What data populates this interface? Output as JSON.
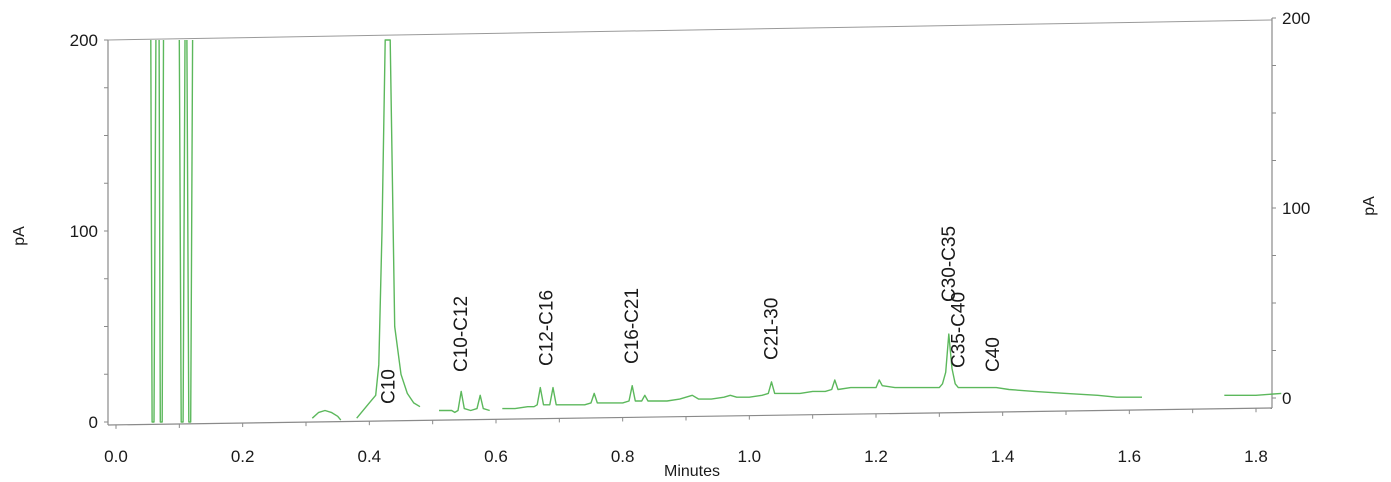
{
  "chart_data": {
    "type": "line",
    "title": "",
    "xlabel": "Minutes",
    "ylabel_left": "pA",
    "ylabel_right": "pA",
    "xlim": [
      0.0,
      1.84
    ],
    "ylim_left": [
      0,
      200
    ],
    "ylim_right": [
      0,
      200
    ],
    "x_ticks": [
      "0.0",
      "0.2",
      "0.4",
      "0.6",
      "0.8",
      "1.0",
      "1.2",
      "1.4",
      "1.6",
      "1.8"
    ],
    "y_ticks_left": [
      "0",
      "100",
      "200"
    ],
    "y_ticks_right": [
      "0",
      "100",
      "200"
    ],
    "grid": false,
    "line_color": "#5cb85c",
    "peak_labels": [
      {
        "text": "C10",
        "x": 0.43
      },
      {
        "text": "C10-C12",
        "x": 0.545
      },
      {
        "text": "C12-C16",
        "x": 0.68
      },
      {
        "text": "C16-C21",
        "x": 0.815
      },
      {
        "text": "C21-30",
        "x": 1.035
      },
      {
        "text": "C30-C35",
        "x": 1.315
      },
      {
        "text": "C35-C40",
        "x": 1.33
      },
      {
        "text": "C40",
        "x": 1.385
      }
    ],
    "series": [
      {
        "segments": [
          [
            [
              0.055,
              200
            ],
            [
              0.057,
              0
            ],
            [
              0.06,
              0
            ],
            [
              0.063,
              200
            ]
          ],
          [
            [
              0.068,
              200
            ],
            [
              0.07,
              0
            ],
            [
              0.073,
              0
            ],
            [
              0.075,
              200
            ]
          ],
          [
            [
              0.1,
              200
            ],
            [
              0.103,
              0
            ],
            [
              0.106,
              0
            ],
            [
              0.109,
              200
            ]
          ],
          [
            [
              0.112,
              200
            ],
            [
              0.115,
              0
            ],
            [
              0.118,
              0
            ],
            [
              0.121,
              200
            ]
          ],
          [
            [
              0.31,
              2
            ],
            [
              0.32,
              5
            ],
            [
              0.33,
              6
            ],
            [
              0.34,
              5
            ],
            [
              0.35,
              3
            ],
            [
              0.355,
              1
            ]
          ],
          [
            [
              0.38,
              2
            ],
            [
              0.4,
              10
            ],
            [
              0.41,
              14
            ],
            [
              0.415,
              30
            ],
            [
              0.42,
              100
            ],
            [
              0.425,
              200
            ],
            [
              0.433,
              200
            ],
            [
              0.44,
              50
            ],
            [
              0.45,
              25
            ],
            [
              0.46,
              15
            ],
            [
              0.47,
              10
            ],
            [
              0.48,
              8
            ]
          ],
          [
            [
              0.51,
              6
            ],
            [
              0.52,
              6
            ],
            [
              0.53,
              6
            ],
            [
              0.535,
              5
            ],
            [
              0.54,
              6
            ],
            [
              0.545,
              16
            ],
            [
              0.55,
              7
            ],
            [
              0.56,
              6
            ],
            [
              0.57,
              7
            ],
            [
              0.575,
              14
            ],
            [
              0.58,
              7
            ],
            [
              0.59,
              6
            ]
          ],
          [
            [
              0.61,
              7
            ],
            [
              0.63,
              7
            ],
            [
              0.65,
              8
            ],
            [
              0.66,
              8
            ],
            [
              0.665,
              9
            ],
            [
              0.67,
              18
            ],
            [
              0.675,
              9
            ],
            [
              0.685,
              9
            ],
            [
              0.69,
              18
            ],
            [
              0.695,
              9
            ],
            [
              0.72,
              9
            ],
            [
              0.74,
              9
            ],
            [
              0.75,
              10
            ],
            [
              0.755,
              15
            ],
            [
              0.76,
              10
            ],
            [
              0.78,
              10
            ],
            [
              0.8,
              10
            ],
            [
              0.81,
              11
            ],
            [
              0.815,
              19
            ],
            [
              0.82,
              11
            ],
            [
              0.83,
              11
            ],
            [
              0.835,
              14
            ],
            [
              0.84,
              11
            ],
            [
              0.87,
              11
            ],
            [
              0.89,
              12
            ],
            [
              0.9,
              13
            ],
            [
              0.91,
              14
            ],
            [
              0.92,
              12
            ],
            [
              0.94,
              12
            ],
            [
              0.96,
              13
            ],
            [
              0.97,
              14
            ],
            [
              0.98,
              13
            ],
            [
              1.0,
              13
            ],
            [
              1.02,
              14
            ],
            [
              1.03,
              15
            ],
            [
              1.035,
              21
            ],
            [
              1.04,
              15
            ],
            [
              1.06,
              15
            ],
            [
              1.08,
              15
            ],
            [
              1.1,
              16
            ],
            [
              1.12,
              16
            ],
            [
              1.13,
              17
            ],
            [
              1.135,
              22
            ],
            [
              1.14,
              17
            ],
            [
              1.16,
              18
            ],
            [
              1.18,
              18
            ],
            [
              1.2,
              18
            ],
            [
              1.205,
              22
            ],
            [
              1.21,
              19
            ],
            [
              1.23,
              18
            ],
            [
              1.25,
              18
            ],
            [
              1.27,
              18
            ],
            [
              1.29,
              18
            ],
            [
              1.3,
              18
            ],
            [
              1.305,
              20
            ],
            [
              1.31,
              26
            ],
            [
              1.315,
              46
            ],
            [
              1.32,
              28
            ],
            [
              1.325,
              20
            ],
            [
              1.33,
              18
            ],
            [
              1.35,
              18
            ],
            [
              1.37,
              18
            ],
            [
              1.39,
              18
            ],
            [
              1.41,
              17
            ],
            [
              1.45,
              16
            ],
            [
              1.5,
              15
            ],
            [
              1.55,
              14
            ],
            [
              1.58,
              13
            ],
            [
              1.61,
              13
            ],
            [
              1.62,
              13
            ]
          ],
          [
            [
              1.75,
              14
            ],
            [
              1.8,
              14
            ],
            [
              1.84,
              15
            ]
          ]
        ]
      }
    ]
  }
}
